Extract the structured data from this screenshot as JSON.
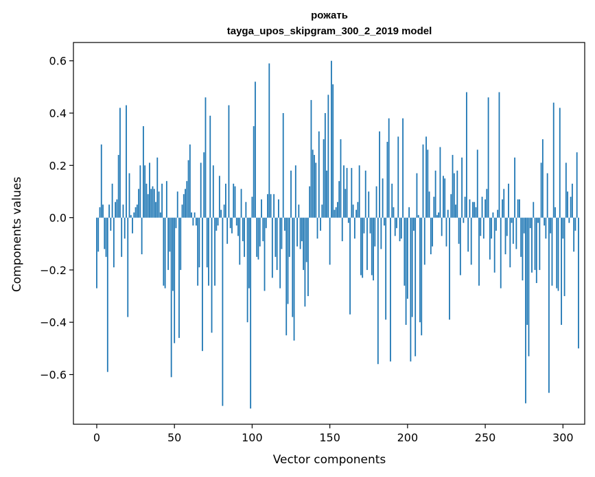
{
  "chart_data": {
    "type": "bar",
    "title_line1": "рожать",
    "title_line2": "tayga_upos_skipgram_300_2_2019 model",
    "xlabel": "Vector components",
    "ylabel": "Components values",
    "xlim": [
      -15,
      314
    ],
    "ylim": [
      -0.79,
      0.67
    ],
    "xticks": [
      0,
      50,
      100,
      150,
      200,
      250,
      300
    ],
    "yticks": [
      -0.6,
      -0.4,
      -0.2,
      0.0,
      0.2,
      0.4,
      0.6
    ],
    "ytick_labels": [
      "−0.6",
      "−0.4",
      "−0.2",
      "0.0",
      "0.2",
      "0.4",
      "0.6"
    ],
    "bar_color": "#1f77b4",
    "grid": false,
    "values": [
      -0.27,
      -0.13,
      0.04,
      0.28,
      0.05,
      -0.12,
      -0.15,
      -0.59,
      0.05,
      -0.05,
      0.13,
      -0.19,
      0.06,
      0.07,
      0.24,
      0.42,
      -0.15,
      0.05,
      -0.08,
      0.43,
      -0.38,
      0.17,
      0.01,
      -0.06,
      0.02,
      0.04,
      0.05,
      0.11,
      0.2,
      -0.14,
      0.35,
      0.2,
      0.13,
      0.09,
      0.21,
      0.11,
      0.12,
      0.11,
      0.06,
      0.23,
      0.1,
      0.02,
      0.13,
      -0.26,
      -0.27,
      0.14,
      -0.2,
      -0.13,
      -0.61,
      -0.28,
      -0.48,
      -0.04,
      0.1,
      -0.46,
      -0.2,
      0.05,
      0.09,
      0.11,
      0.14,
      0.22,
      0.28,
      0.02,
      -0.03,
      0.02,
      -0.03,
      -0.26,
      -0.19,
      0.21,
      -0.51,
      0.25,
      0.46,
      -0.19,
      -0.26,
      0.39,
      -0.44,
      0.2,
      -0.26,
      -0.05,
      -0.03,
      0.16,
      0.03,
      -0.72,
      0.05,
      0.13,
      -0.1,
      0.43,
      -0.04,
      -0.06,
      0.13,
      0.12,
      -0.03,
      -0.07,
      -0.18,
      0.11,
      -0.09,
      -0.15,
      0.06,
      -0.4,
      -0.27,
      -0.73,
      0.08,
      0.35,
      0.52,
      -0.15,
      -0.16,
      -0.11,
      0.07,
      -0.09,
      -0.28,
      -0.04,
      0.09,
      0.59,
      0.09,
      -0.23,
      0.09,
      -0.15,
      -0.2,
      0.07,
      -0.27,
      -0.12,
      0.4,
      -0.05,
      -0.45,
      -0.33,
      -0.15,
      0.18,
      -0.38,
      -0.47,
      0.2,
      -0.11,
      0.05,
      -0.12,
      -0.09,
      -0.2,
      -0.34,
      -0.17,
      -0.3,
      0.12,
      0.45,
      0.26,
      0.24,
      0.21,
      -0.08,
      0.33,
      -0.05,
      0.05,
      0.3,
      0.4,
      0.18,
      0.47,
      -0.18,
      0.6,
      0.51,
      0.03,
      0.04,
      0.06,
      0.14,
      0.3,
      -0.09,
      0.2,
      0.11,
      0.19,
      -0.02,
      -0.37,
      0.19,
      0.05,
      -0.08,
      0.03,
      0.06,
      0.2,
      -0.22,
      -0.23,
      -0.06,
      0.18,
      -0.2,
      0.1,
      -0.06,
      -0.22,
      -0.24,
      -0.11,
      0.12,
      -0.56,
      0.33,
      -0.12,
      0.15,
      -0.03,
      -0.39,
      0.29,
      0.38,
      -0.55,
      0.13,
      0.04,
      -0.07,
      -0.04,
      0.31,
      -0.09,
      -0.08,
      0.38,
      -0.26,
      -0.41,
      -0.31,
      0.04,
      -0.55,
      -0.38,
      -0.05,
      -0.53,
      0.17,
      0.01,
      -0.4,
      -0.45,
      0.28,
      -0.18,
      0.31,
      0.26,
      0.1,
      -0.14,
      -0.11,
      0.08,
      0.18,
      0.01,
      0.02,
      0.27,
      -0.07,
      0.16,
      0.15,
      -0.11,
      0.03,
      -0.39,
      0.09,
      0.24,
      0.17,
      0.05,
      0.18,
      -0.1,
      -0.22,
      0.23,
      -0.02,
      0.08,
      0.48,
      -0.13,
      0.07,
      -0.18,
      0.06,
      0.06,
      0.04,
      0.26,
      -0.26,
      -0.07,
      0.08,
      -0.08,
      0.07,
      0.11,
      0.46,
      -0.16,
      -0.08,
      0.02,
      -0.21,
      -0.05,
      0.03,
      0.48,
      -0.27,
      0.07,
      0.11,
      -0.14,
      -0.07,
      0.13,
      -0.19,
      -0.02,
      -0.1,
      0.23,
      -0.12,
      0.07,
      0.07,
      -0.15,
      -0.24,
      -0.06,
      -0.71,
      -0.41,
      -0.53,
      -0.04,
      -0.21,
      0.06,
      -0.2,
      -0.25,
      -0.02,
      -0.2,
      0.21,
      0.3,
      -0.03,
      -0.08,
      0.17,
      -0.67,
      -0.06,
      -0.26,
      0.44,
      0.04,
      -0.27,
      -0.28,
      0.42,
      -0.41,
      -0.08,
      -0.3,
      0.21,
      0.1,
      -0.02,
      0.08,
      0.13,
      -0.13,
      -0.05,
      0.25,
      -0.5
    ]
  }
}
